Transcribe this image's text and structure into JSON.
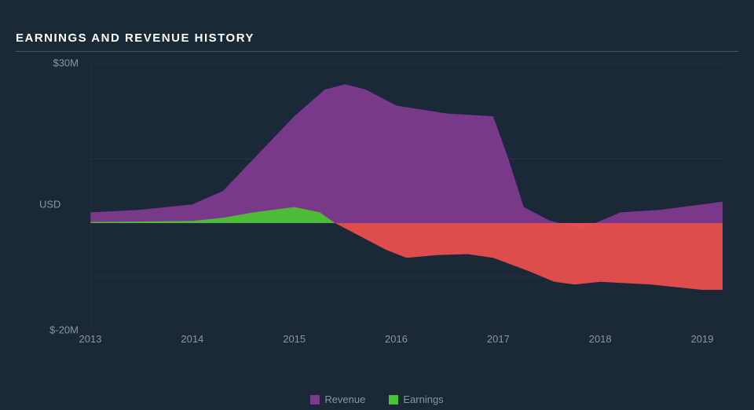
{
  "title": "EARNINGS AND REVENUE HISTORY",
  "chart": {
    "type": "area",
    "background_color": "#1b2838",
    "plot_background": "#1b2838",
    "grid_color": "#30353d",
    "baseline_color": "#2a3240",
    "text_color": "#8a95a5",
    "title_color": "#ffffff",
    "title_fontsize": 15,
    "label_fontsize": 13,
    "y_axis": {
      "title": "USD",
      "min": -20,
      "max": 30,
      "ticks": [
        {
          "value": 30,
          "label": "$30M"
        },
        {
          "value": -20,
          "label": "$-20M"
        }
      ]
    },
    "x_axis": {
      "min": 2013,
      "max": 2019.2,
      "ticks": [
        2013,
        2014,
        2015,
        2016,
        2017,
        2018,
        2019
      ]
    },
    "series": [
      {
        "name": "Revenue",
        "color": "#7e3a8f",
        "fill_opacity": 0.95,
        "data": [
          {
            "x": 2013.0,
            "y": 2.0
          },
          {
            "x": 2013.5,
            "y": 2.5
          },
          {
            "x": 2014.0,
            "y": 3.5
          },
          {
            "x": 2014.3,
            "y": 6.0
          },
          {
            "x": 2014.6,
            "y": 12.0
          },
          {
            "x": 2015.0,
            "y": 20.0
          },
          {
            "x": 2015.3,
            "y": 25.0
          },
          {
            "x": 2015.5,
            "y": 26.0
          },
          {
            "x": 2015.7,
            "y": 25.0
          },
          {
            "x": 2016.0,
            "y": 22.0
          },
          {
            "x": 2016.5,
            "y": 20.5
          },
          {
            "x": 2016.95,
            "y": 20.0
          },
          {
            "x": 2017.1,
            "y": 12.0
          },
          {
            "x": 2017.25,
            "y": 3.0
          },
          {
            "x": 2017.5,
            "y": 0.5
          },
          {
            "x": 2017.8,
            "y": -1.0
          },
          {
            "x": 2017.95,
            "y": 0.0
          },
          {
            "x": 2018.2,
            "y": 2.0
          },
          {
            "x": 2018.6,
            "y": 2.5
          },
          {
            "x": 2019.0,
            "y": 3.5
          },
          {
            "x": 2019.2,
            "y": 4.0
          }
        ]
      },
      {
        "name": "Earnings",
        "color_positive": "#4bc234",
        "color_negative": "#e84f4f",
        "fill_opacity": 0.95,
        "data": [
          {
            "x": 2013.0,
            "y": 0.2
          },
          {
            "x": 2013.5,
            "y": 0.3
          },
          {
            "x": 2014.0,
            "y": 0.4
          },
          {
            "x": 2014.3,
            "y": 1.0
          },
          {
            "x": 2014.6,
            "y": 2.0
          },
          {
            "x": 2015.0,
            "y": 3.0
          },
          {
            "x": 2015.25,
            "y": 2.0
          },
          {
            "x": 2015.4,
            "y": 0.0
          },
          {
            "x": 2015.6,
            "y": -2.0
          },
          {
            "x": 2015.9,
            "y": -5.0
          },
          {
            "x": 2016.1,
            "y": -6.5
          },
          {
            "x": 2016.4,
            "y": -6.0
          },
          {
            "x": 2016.7,
            "y": -5.8
          },
          {
            "x": 2016.95,
            "y": -6.5
          },
          {
            "x": 2017.3,
            "y": -9.0
          },
          {
            "x": 2017.55,
            "y": -11.0
          },
          {
            "x": 2017.75,
            "y": -11.5
          },
          {
            "x": 2018.0,
            "y": -11.0
          },
          {
            "x": 2018.5,
            "y": -11.5
          },
          {
            "x": 2019.0,
            "y": -12.5
          },
          {
            "x": 2019.2,
            "y": -12.5
          }
        ]
      }
    ],
    "legend": {
      "position": "bottom-center",
      "items": [
        {
          "label": "Revenue",
          "color": "#7e3a8f"
        },
        {
          "label": "Earnings",
          "color": "#4bc234"
        }
      ]
    }
  }
}
